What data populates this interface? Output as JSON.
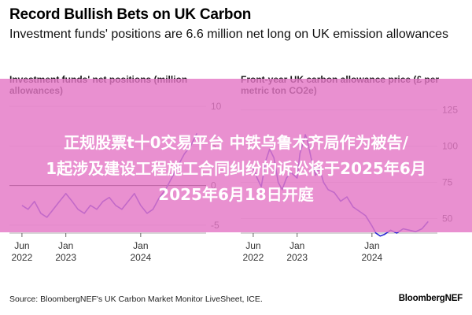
{
  "header": {
    "title": "Record Bullish Bets on UK Carbon",
    "subtitle": "Investment funds' positions are 6.6 million net long on UK emission allowances"
  },
  "overlay": {
    "lines": [
      "正规股票t十0交易平台 中铁乌鲁木齐局作为被告/",
      "1起涉及建设工程施工合同纠纷的诉讼将于2025年6月",
      "2025年6月18日开庭"
    ]
  },
  "footer": {
    "source": "Source: BloombergNEF's UK Carbon Market Monitor LiveSheet, ICE.",
    "brand": "BloombergNEF"
  },
  "colors": {
    "line": "#2a2ad4",
    "zero_line": "#000000",
    "grid": "#d9d9d9",
    "overlay": "#e478c6"
  },
  "chart_data": [
    {
      "type": "line",
      "title": "Investment funds' net positions (million allowances)",
      "x_ticks": [
        {
          "month": "Jun",
          "year": "2022",
          "date": "2022-06-01"
        },
        {
          "month": "Jan",
          "year": "2023",
          "date": "2023-01-01"
        },
        {
          "month": "Jan",
          "year": "2024",
          "date": "2024-01-01"
        }
      ],
      "y_ticks": [
        10,
        5,
        0,
        -5
      ],
      "ylim": [
        -6,
        11
      ],
      "xlim": [
        "2022-04-01",
        "2024-11-15"
      ],
      "grid": true,
      "series": [
        {
          "points": [
            [
              "2022-06-01",
              -2.5
            ],
            [
              "2022-07-01",
              -3.0
            ],
            [
              "2022-08-01",
              -2.0
            ],
            [
              "2022-09-01",
              -3.5
            ],
            [
              "2022-10-01",
              -4.0
            ],
            [
              "2022-11-01",
              -3.0
            ],
            [
              "2022-12-01",
              -2.0
            ],
            [
              "2023-01-01",
              -1.0
            ],
            [
              "2023-02-01",
              -2.0
            ],
            [
              "2023-03-01",
              -3.0
            ],
            [
              "2023-04-01",
              -3.5
            ],
            [
              "2023-05-01",
              -2.5
            ],
            [
              "2023-06-01",
              -3.0
            ],
            [
              "2023-07-01",
              -2.0
            ],
            [
              "2023-08-01",
              -1.5
            ],
            [
              "2023-09-01",
              -2.5
            ],
            [
              "2023-10-01",
              -3.0
            ],
            [
              "2023-11-01",
              -2.0
            ],
            [
              "2023-12-01",
              -1.0
            ],
            [
              "2024-01-01",
              -2.5
            ],
            [
              "2024-02-01",
              -3.5
            ],
            [
              "2024-03-01",
              -3.0
            ],
            [
              "2024-04-01",
              -1.5
            ],
            [
              "2024-05-01",
              -0.5
            ],
            [
              "2024-06-01",
              1.0
            ],
            [
              "2024-07-01",
              2.5
            ],
            [
              "2024-08-01",
              4.0
            ],
            [
              "2024-09-01",
              5.0
            ],
            [
              "2024-10-01",
              6.6
            ]
          ]
        }
      ]
    },
    {
      "type": "line",
      "title": "Front-year UK carbon allowance price (£ per metric ton CO2e)",
      "x_ticks": [
        {
          "month": "Jun",
          "year": "2022",
          "date": "2022-06-01"
        },
        {
          "month": "Jan",
          "year": "2023",
          "date": "2023-01-01"
        },
        {
          "month": "Jan",
          "year": "2024",
          "date": "2024-01-01"
        }
      ],
      "y_ticks": [
        125,
        100,
        75,
        50
      ],
      "ylim": [
        40,
        133
      ],
      "xlim": [
        "2022-04-01",
        "2024-11-15"
      ],
      "grid": true,
      "series": [
        {
          "points": [
            [
              "2022-06-01",
              85
            ],
            [
              "2022-06-20",
              78
            ],
            [
              "2022-07-10",
              72
            ],
            [
              "2022-08-01",
              90
            ],
            [
              "2022-08-20",
              98
            ],
            [
              "2022-09-10",
              92
            ],
            [
              "2022-10-01",
              75
            ],
            [
              "2022-10-20",
              70
            ],
            [
              "2022-11-10",
              78
            ],
            [
              "2022-12-01",
              82
            ],
            [
              "2023-01-01",
              78
            ],
            [
              "2023-01-15",
              95
            ],
            [
              "2023-02-01",
              103
            ],
            [
              "2023-02-10",
              108
            ],
            [
              "2023-02-20",
              104
            ],
            [
              "2023-03-10",
              92
            ],
            [
              "2023-04-01",
              80
            ],
            [
              "2023-04-20",
              85
            ],
            [
              "2023-05-10",
              75
            ],
            [
              "2023-06-01",
              70
            ],
            [
              "2023-07-01",
              68
            ],
            [
              "2023-08-01",
              62
            ],
            [
              "2023-09-01",
              65
            ],
            [
              "2023-10-01",
              58
            ],
            [
              "2023-11-01",
              55
            ],
            [
              "2023-12-01",
              52
            ],
            [
              "2024-01-01",
              45
            ],
            [
              "2024-01-20",
              40
            ],
            [
              "2024-02-10",
              38
            ],
            [
              "2024-03-01",
              39
            ],
            [
              "2024-04-01",
              42
            ],
            [
              "2024-05-01",
              40
            ],
            [
              "2024-06-01",
              43
            ],
            [
              "2024-07-01",
              42
            ],
            [
              "2024-08-01",
              41
            ],
            [
              "2024-09-01",
              43
            ],
            [
              "2024-10-01",
              48
            ]
          ]
        }
      ]
    }
  ]
}
